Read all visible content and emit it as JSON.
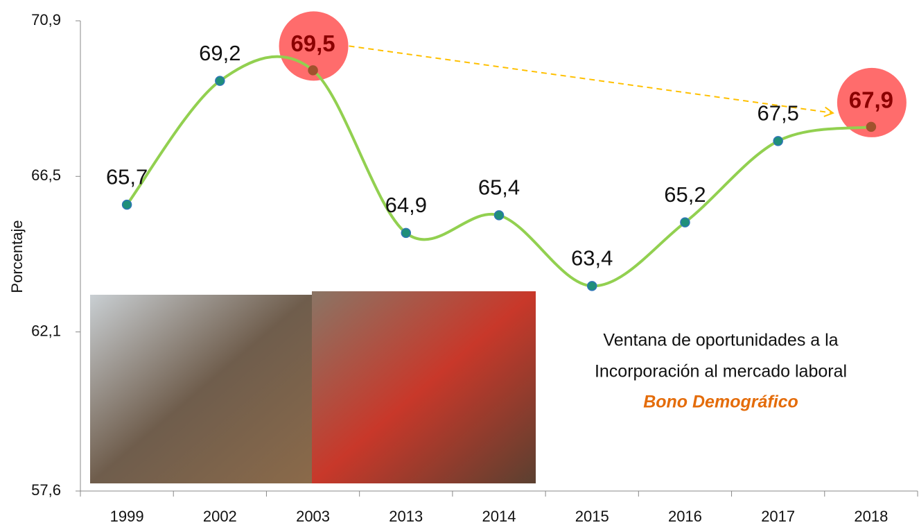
{
  "chart_data": {
    "type": "line",
    "y_label": "Porcentaje",
    "categories": [
      "1999",
      "2002",
      "2003",
      "2013",
      "2014",
      "2015",
      "2016",
      "2017",
      "2018"
    ],
    "values": [
      65.7,
      69.2,
      69.5,
      64.9,
      65.4,
      63.4,
      65.2,
      67.5,
      67.9
    ],
    "value_labels": [
      "65,7",
      "69,2",
      "69,5",
      "64,9",
      "65,4",
      "63,4",
      "65,2",
      "67,5",
      "67,9"
    ],
    "color": "#92d050",
    "marker_color": "#1f8f7a",
    "highlighted_categories": [
      "2003",
      "2018"
    ],
    "highlight_color": "#ff5c5c",
    "arrow": {
      "from": "2003",
      "to": "2018",
      "color": "#ffc000"
    },
    "ylim": [
      57.6,
      70.9
    ],
    "yticks": [
      {
        "value": 57.6,
        "label": "57,6"
      },
      {
        "value": 62.1,
        "label": "62,1"
      },
      {
        "value": 66.5,
        "label": "66,5"
      },
      {
        "value": 70.9,
        "label": "70,9"
      }
    ],
    "annotations": [
      "Ventana de oportunidades a la",
      "Incorporación al mercado laboral",
      "Bono Demográfico"
    ],
    "annotation_highlight_color": "#e46c0a"
  }
}
